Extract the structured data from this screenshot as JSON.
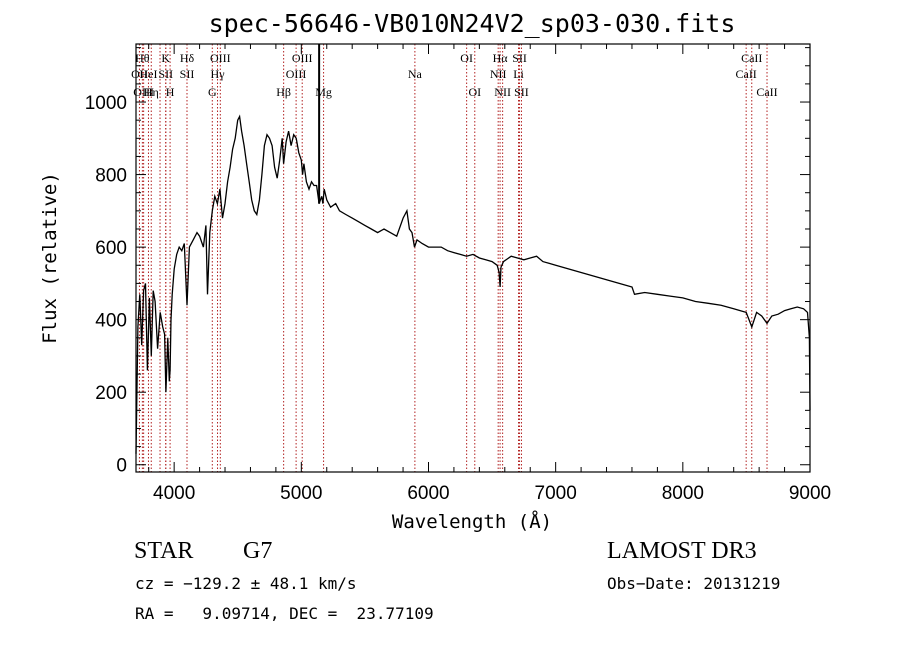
{
  "chart_data": {
    "type": "line",
    "title": "spec-56646-VB010N24V2_sp03-030.fits",
    "xlabel": "Wavelength (Å)",
    "ylabel": "Flux (relative)",
    "xlim": [
      3700,
      9000
    ],
    "ylim": [
      -20,
      1160
    ],
    "x_ticks": [
      4000,
      5000,
      6000,
      7000,
      8000,
      9000
    ],
    "y_ticks": [
      0,
      200,
      400,
      600,
      800,
      1000
    ],
    "grid": false,
    "series": [
      {
        "x": [
          3700,
          3715,
          3730,
          3745,
          3760,
          3775,
          3790,
          3805,
          3820,
          3835,
          3850,
          3870,
          3890,
          3910,
          3925,
          3935,
          3950,
          3962,
          3968,
          3975,
          3985,
          4000,
          4020,
          4040,
          4060,
          4080,
          4101,
          4120,
          4150,
          4180,
          4200,
          4230,
          4250,
          4262,
          4280,
          4300,
          4320,
          4340,
          4360,
          4380,
          4400,
          4420,
          4440,
          4460,
          4480,
          4500,
          4515,
          4530,
          4550,
          4570,
          4590,
          4610,
          4630,
          4650,
          4670,
          4690,
          4710,
          4730,
          4750,
          4770,
          4790,
          4810,
          4830,
          4850,
          4861,
          4880,
          4900,
          4920,
          4940,
          4960,
          4980,
          5000,
          5010,
          5020,
          5040,
          5060,
          5080,
          5100,
          5120,
          5140,
          5160,
          5170,
          5180,
          5200,
          5230,
          5270,
          5300,
          5350,
          5400,
          5450,
          5500,
          5550,
          5600,
          5650,
          5700,
          5750,
          5800,
          5830,
          5850,
          5870,
          5890,
          5910,
          5950,
          6000,
          6050,
          6100,
          6150,
          6200,
          6250,
          6300,
          6350,
          6400,
          6450,
          6500,
          6540,
          6555,
          6563,
          6570,
          6590,
          6650,
          6700,
          6750,
          6800,
          6850,
          6900,
          6950,
          7000,
          7100,
          7200,
          7300,
          7400,
          7500,
          7600,
          7620,
          7700,
          7800,
          7900,
          8000,
          8100,
          8200,
          8300,
          8400,
          8450,
          8498,
          8542,
          8580,
          8620,
          8662,
          8700,
          8750,
          8800,
          8850,
          8900,
          8950,
          8980,
          8995,
          9000
        ],
        "y": [
          30,
          380,
          470,
          330,
          480,
          500,
          260,
          460,
          300,
          480,
          450,
          320,
          420,
          380,
          360,
          200,
          350,
          230,
          260,
          400,
          470,
          540,
          580,
          600,
          590,
          610,
          440,
          600,
          620,
          640,
          630,
          600,
          660,
          470,
          640,
          700,
          740,
          720,
          760,
          680,
          720,
          780,
          820,
          870,
          900,
          950,
          960,
          920,
          880,
          830,
          780,
          730,
          700,
          690,
          730,
          800,
          880,
          910,
          900,
          880,
          820,
          790,
          840,
          900,
          830,
          890,
          920,
          880,
          910,
          900,
          860,
          840,
          800,
          830,
          780,
          760,
          780,
          770,
          770,
          720,
          740,
          720,
          760,
          730,
          710,
          720,
          700,
          690,
          680,
          670,
          660,
          650,
          640,
          650,
          640,
          630,
          680,
          700,
          650,
          640,
          600,
          620,
          610,
          600,
          600,
          600,
          590,
          585,
          580,
          575,
          580,
          570,
          565,
          560,
          550,
          530,
          490,
          545,
          560,
          575,
          570,
          565,
          570,
          575,
          560,
          555,
          550,
          540,
          530,
          520,
          510,
          500,
          490,
          470,
          475,
          470,
          465,
          460,
          450,
          445,
          440,
          430,
          425,
          420,
          380,
          420,
          410,
          390,
          410,
          415,
          425,
          430,
          435,
          430,
          420,
          350,
          150
        ]
      }
    ],
    "vlines": [
      {
        "x": 3727,
        "label": "OII",
        "row": 2
      },
      {
        "x": 3750,
        "label": "Hθ",
        "row": 1
      },
      {
        "x": 3760,
        "label": "OIII",
        "row": 3
      },
      {
        "x": 3798,
        "label": "HeI",
        "row": 2
      },
      {
        "x": 3820,
        "label": "Hη",
        "row": 3
      },
      {
        "x": 3889,
        "label": "",
        "row": 0
      },
      {
        "x": 3934,
        "label": "K",
        "row": 1
      },
      {
        "x": 3934,
        "label": "SII",
        "row": 2
      },
      {
        "x": 3968,
        "label": "H",
        "row": 3
      },
      {
        "x": 4101,
        "label": "Hδ",
        "row": 1
      },
      {
        "x": 4101,
        "label": "SII",
        "row": 2
      },
      {
        "x": 4300,
        "label": "G",
        "row": 3
      },
      {
        "x": 4341,
        "label": "Hγ",
        "row": 2
      },
      {
        "x": 4363,
        "label": "OIII",
        "row": 1
      },
      {
        "x": 4861,
        "label": "Hβ",
        "row": 3
      },
      {
        "x": 4959,
        "label": "OIII",
        "row": 2
      },
      {
        "x": 5007,
        "label": "OIII",
        "row": 1
      },
      {
        "x": 5175,
        "label": "Mg",
        "row": 3
      },
      {
        "x": 5893,
        "label": "Na",
        "row": 2
      },
      {
        "x": 6300,
        "label": "OI",
        "row": 1
      },
      {
        "x": 6364,
        "label": "OI",
        "row": 3
      },
      {
        "x": 6548,
        "label": "NII",
        "row": 2
      },
      {
        "x": 6563,
        "label": "Hα",
        "row": 1
      },
      {
        "x": 6583,
        "label": "NII",
        "row": 3
      },
      {
        "x": 6708,
        "label": "Li",
        "row": 2
      },
      {
        "x": 6716,
        "label": "SII",
        "row": 1
      },
      {
        "x": 6731,
        "label": "SII",
        "row": 3
      },
      {
        "x": 8498,
        "label": "CaII",
        "row": 2
      },
      {
        "x": 8542,
        "label": "CaII",
        "row": 1
      },
      {
        "x": 8662,
        "label": "CaII",
        "row": 3
      }
    ],
    "solid_marker_x": 5140
  },
  "info": {
    "class_text": "STAR",
    "subclass_text": "G7",
    "survey_text": "LAMOST DR3",
    "cz_text": "cz = −129.2 ± 48.1 km/s",
    "obs_date_text": "Obs−Date: 20131219",
    "radec_text": "RA =   9.09714, DEC =  23.77109"
  },
  "colors": {
    "line": "#000000",
    "vline": "#b22222",
    "background": "#ffffff"
  }
}
